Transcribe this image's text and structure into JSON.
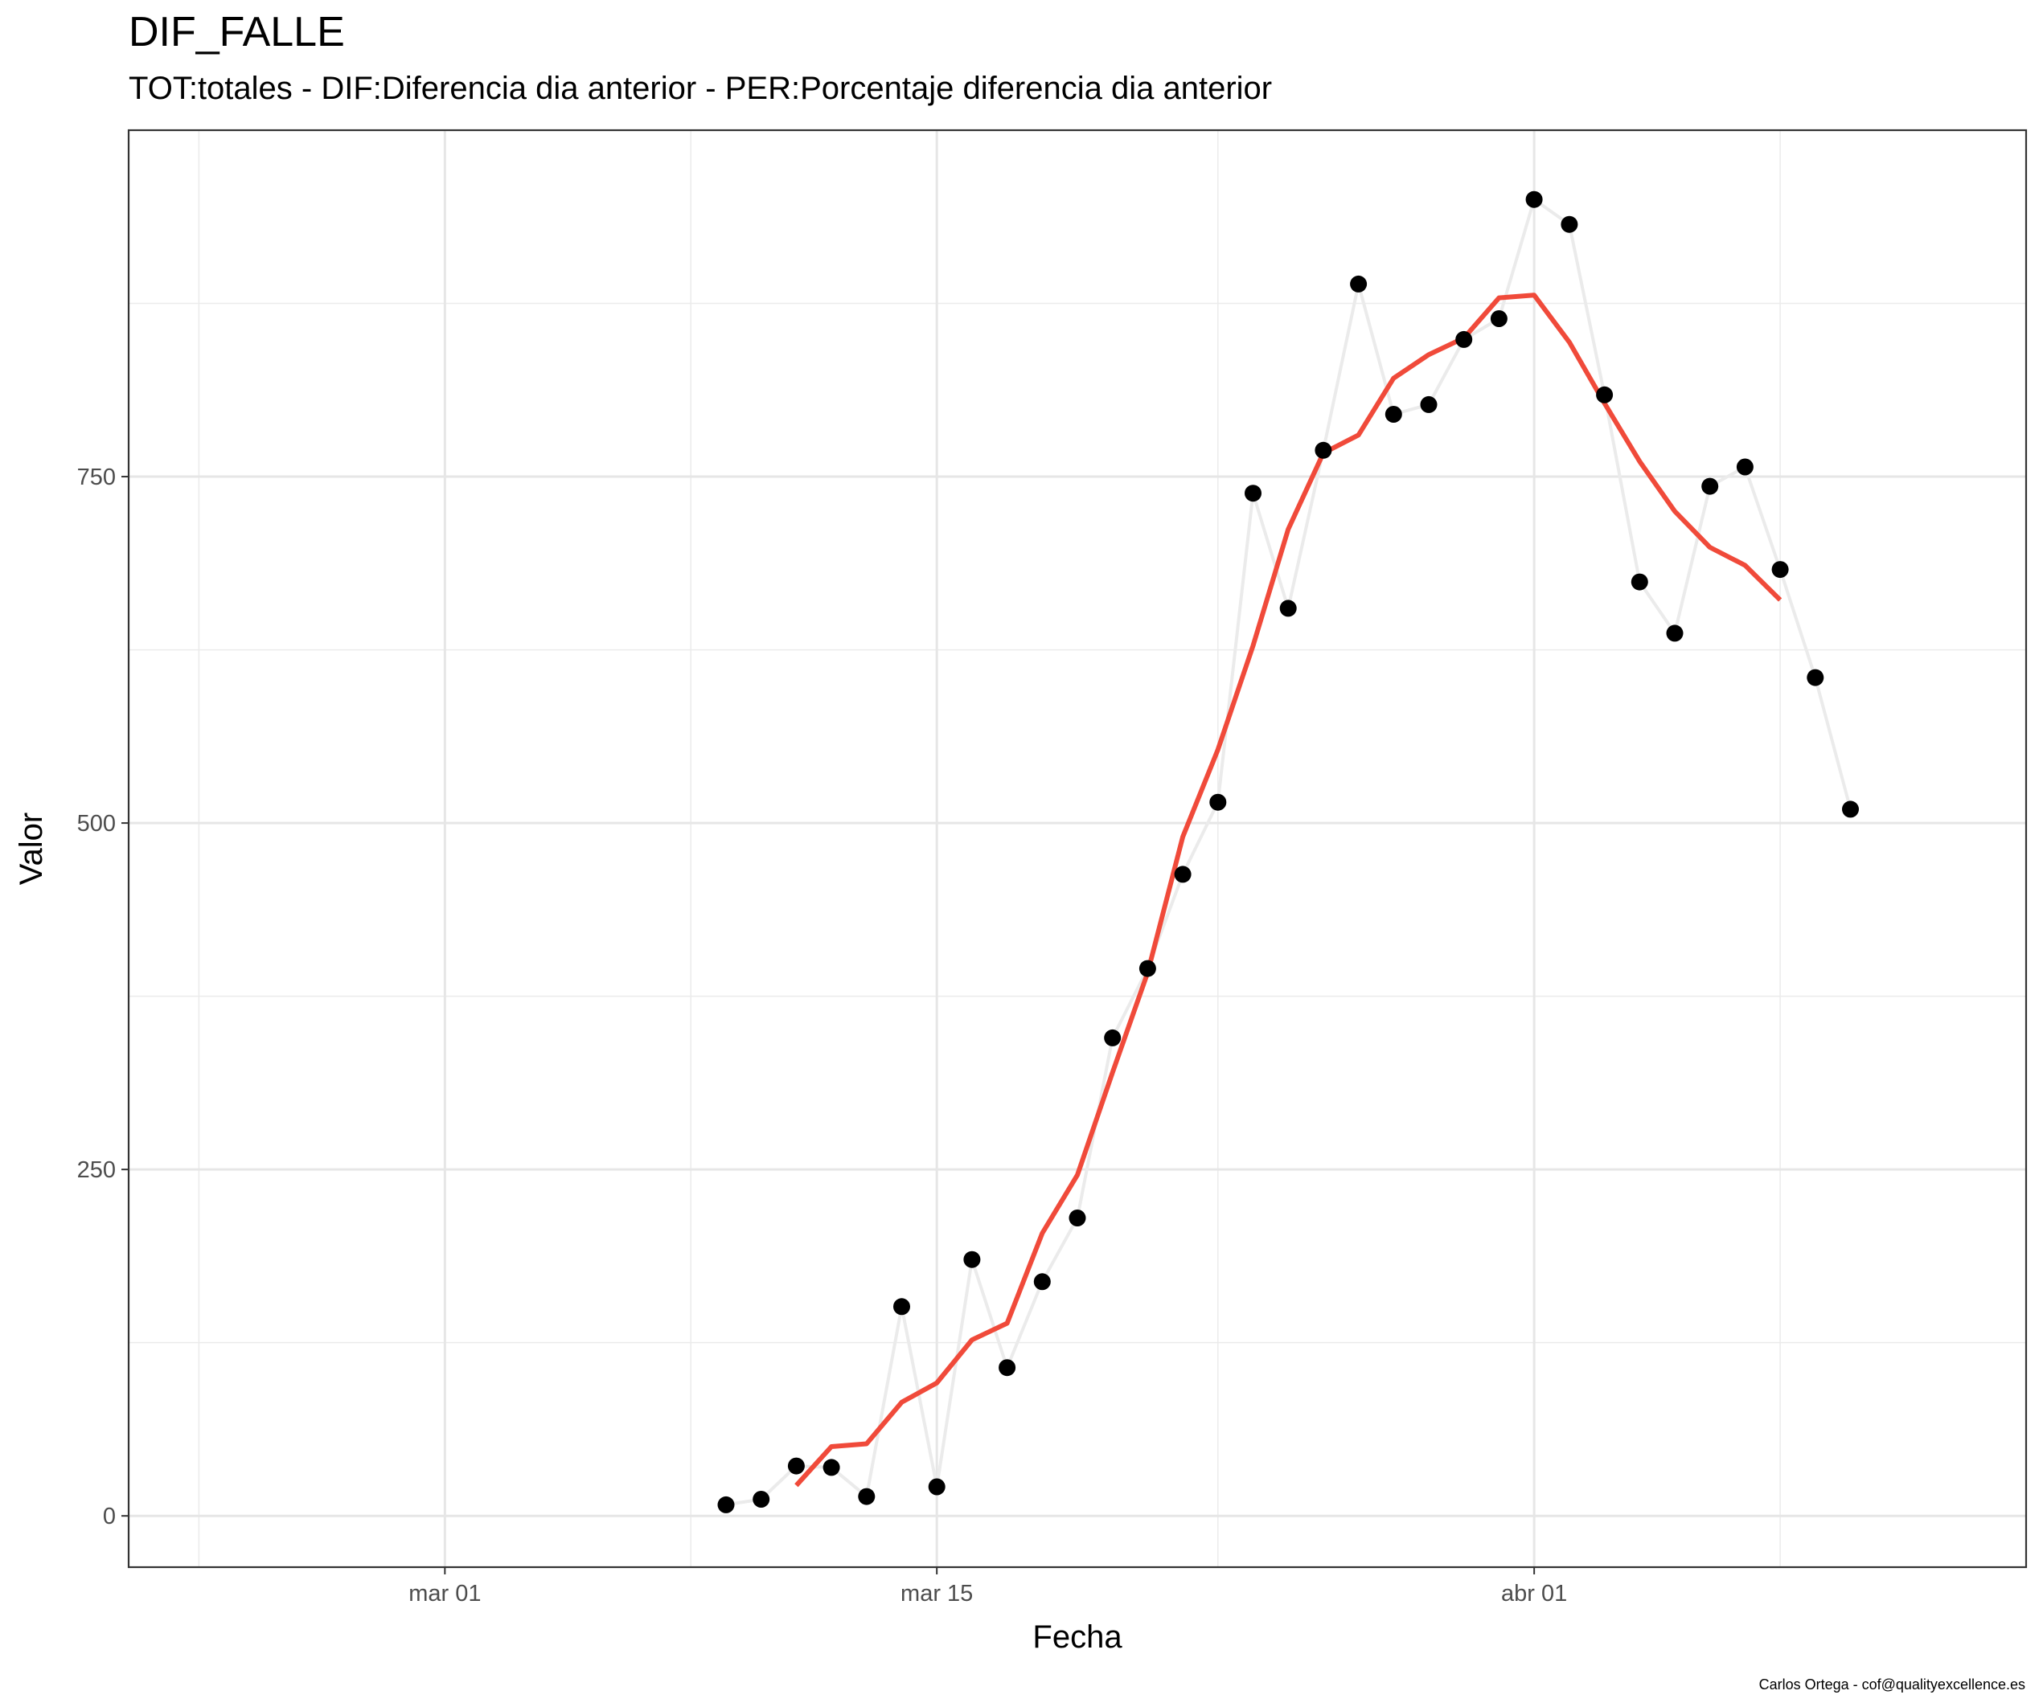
{
  "chart_data": {
    "type": "line",
    "title": "DIF_FALLE",
    "subtitle": "TOT:totales - DIF:Diferencia dia anterior - PER:Porcentaje diferencia dia anterior",
    "caption": "Carlos Ortega - cof@qualityexcellence.es",
    "xlabel": "Fecha",
    "ylabel": "Valor",
    "xlim": [
      "2020-02-21",
      "2020-04-15"
    ],
    "ylim": [
      -37,
      1000
    ],
    "x_ticks": [
      {
        "date": "2020-03-01",
        "label": "mar 01"
      },
      {
        "date": "2020-03-15",
        "label": "mar 15"
      },
      {
        "date": "2020-04-01",
        "label": "abr 01"
      }
    ],
    "x_minor_ticks": [
      "2020-02-23",
      "2020-03-08",
      "2020-03-23",
      "2020-04-08"
    ],
    "y_ticks": [
      0,
      250,
      500,
      750
    ],
    "y_minor_ticks": [
      125,
      375,
      625,
      875
    ],
    "grid": true,
    "colors": {
      "points": "#000000",
      "connector": "#ebebeb",
      "smooth": "#f04a3a"
    },
    "series": [
      {
        "kind": "points-with-line",
        "points": [
          {
            "x": "2020-03-09",
            "y": 8
          },
          {
            "x": "2020-03-10",
            "y": 12
          },
          {
            "x": "2020-03-11",
            "y": 36
          },
          {
            "x": "2020-03-12",
            "y": 35
          },
          {
            "x": "2020-03-13",
            "y": 14
          },
          {
            "x": "2020-03-14",
            "y": 151
          },
          {
            "x": "2020-03-15",
            "y": 21
          },
          {
            "x": "2020-03-16",
            "y": 185
          },
          {
            "x": "2020-03-17",
            "y": 107
          },
          {
            "x": "2020-03-18",
            "y": 169
          },
          {
            "x": "2020-03-19",
            "y": 215
          },
          {
            "x": "2020-03-20",
            "y": 345
          },
          {
            "x": "2020-03-21",
            "y": 395
          },
          {
            "x": "2020-03-22",
            "y": 463
          },
          {
            "x": "2020-03-23",
            "y": 515
          },
          {
            "x": "2020-03-24",
            "y": 738
          },
          {
            "x": "2020-03-25",
            "y": 655
          },
          {
            "x": "2020-03-26",
            "y": 769
          },
          {
            "x": "2020-03-27",
            "y": 889
          },
          {
            "x": "2020-03-28",
            "y": 795
          },
          {
            "x": "2020-03-29",
            "y": 802
          },
          {
            "x": "2020-03-30",
            "y": 849
          },
          {
            "x": "2020-03-31",
            "y": 864
          },
          {
            "x": "2020-04-01",
            "y": 950
          },
          {
            "x": "2020-04-02",
            "y": 932
          },
          {
            "x": "2020-04-03",
            "y": 809
          },
          {
            "x": "2020-04-04",
            "y": 674
          },
          {
            "x": "2020-04-05",
            "y": 637
          },
          {
            "x": "2020-04-06",
            "y": 743
          },
          {
            "x": "2020-04-07",
            "y": 757
          },
          {
            "x": "2020-04-08",
            "y": 683
          },
          {
            "x": "2020-04-09",
            "y": 605
          },
          {
            "x": "2020-04-10",
            "y": 510
          }
        ]
      },
      {
        "kind": "smooth-line",
        "points": [
          {
            "x": "2020-03-11",
            "y": 22
          },
          {
            "x": "2020-03-12",
            "y": 50
          },
          {
            "x": "2020-03-13",
            "y": 52
          },
          {
            "x": "2020-03-14",
            "y": 82
          },
          {
            "x": "2020-03-15",
            "y": 96
          },
          {
            "x": "2020-03-16",
            "y": 127
          },
          {
            "x": "2020-03-17",
            "y": 139
          },
          {
            "x": "2020-03-18",
            "y": 204
          },
          {
            "x": "2020-03-19",
            "y": 246
          },
          {
            "x": "2020-03-20",
            "y": 320
          },
          {
            "x": "2020-03-21",
            "y": 392
          },
          {
            "x": "2020-03-22",
            "y": 490
          },
          {
            "x": "2020-03-23",
            "y": 553
          },
          {
            "x": "2020-03-24",
            "y": 628
          },
          {
            "x": "2020-03-25",
            "y": 712
          },
          {
            "x": "2020-03-26",
            "y": 767
          },
          {
            "x": "2020-03-27",
            "y": 780
          },
          {
            "x": "2020-03-28",
            "y": 821
          },
          {
            "x": "2020-03-29",
            "y": 838
          },
          {
            "x": "2020-03-30",
            "y": 850
          },
          {
            "x": "2020-03-31",
            "y": 879
          },
          {
            "x": "2020-04-01",
            "y": 881
          },
          {
            "x": "2020-04-02",
            "y": 847
          },
          {
            "x": "2020-04-03",
            "y": 803
          },
          {
            "x": "2020-04-04",
            "y": 761
          },
          {
            "x": "2020-04-05",
            "y": 725
          },
          {
            "x": "2020-04-06",
            "y": 699
          },
          {
            "x": "2020-04-07",
            "y": 686
          },
          {
            "x": "2020-04-08",
            "y": 661
          }
        ]
      }
    ]
  }
}
